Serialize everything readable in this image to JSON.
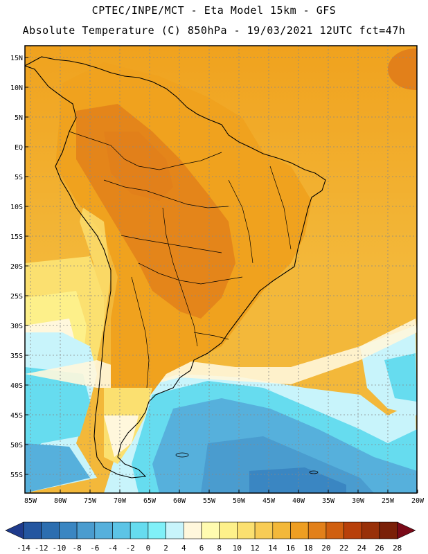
{
  "header": {
    "line1": "CPTEC/INPE/MCT -  Eta Model 15km - GFS",
    "line2": "Absolute Temperature (C) 850hPa - 19/03/2021 12UTC fct=47h"
  },
  "map": {
    "lat_labels": [
      "15N",
      "10N",
      "5N",
      "EQ",
      "5S",
      "10S",
      "15S",
      "20S",
      "25S",
      "30S",
      "35S",
      "40S",
      "45S",
      "50S",
      "55S"
    ],
    "lon_labels": [
      "85W",
      "80W",
      "75W",
      "70W",
      "65W",
      "60W",
      "55W",
      "50W",
      "45W",
      "40W",
      "35W",
      "30W",
      "25W",
      "20W"
    ]
  },
  "colorbar": {
    "ticks": [
      "-14",
      "-12",
      "-10",
      "-8",
      "-6",
      "-4",
      "-2",
      "0",
      "2",
      "4",
      "6",
      "8",
      "10",
      "12",
      "14",
      "16",
      "18",
      "20",
      "22",
      "24",
      "26",
      "28"
    ],
    "colors": [
      "#1f3b8c",
      "#2456a0",
      "#2c6eb0",
      "#3a86c2",
      "#4a9ccf",
      "#56b0dc",
      "#5cc4e6",
      "#66dcef",
      "#80f0f8",
      "#c8f4fb",
      "#fff7dc",
      "#fffbb0",
      "#fdf08a",
      "#fbe070",
      "#f8cc55",
      "#f3b83a",
      "#ee9e22",
      "#e2801a",
      "#d05f10",
      "#b8400a",
      "#983008",
      "#7a2008",
      "#7a0a18"
    ]
  }
}
